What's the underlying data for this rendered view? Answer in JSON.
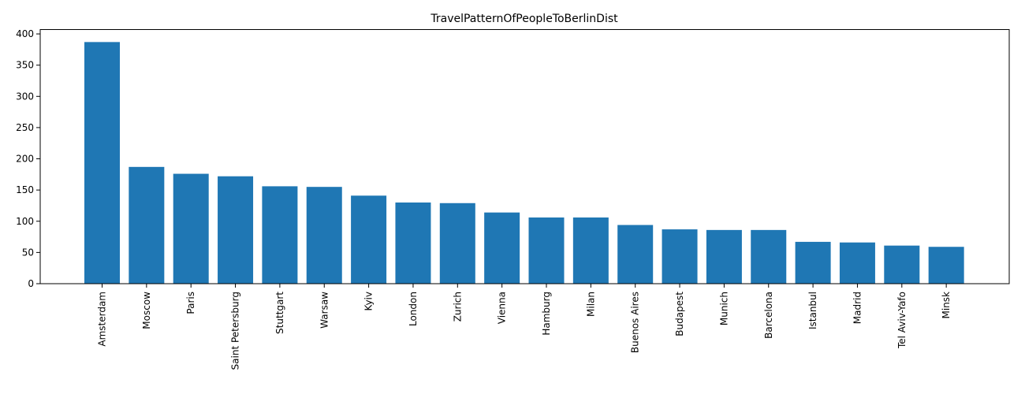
{
  "colors": {
    "bar": "#1f77b4",
    "axis": "#000000",
    "background": "#ffffff"
  },
  "chart_data": {
    "type": "bar",
    "title": "TravelPatternOfPeopleToBerlinDist",
    "xlabel": "",
    "ylabel": "",
    "ylim": [
      0,
      407
    ],
    "yticks": [
      0,
      50,
      100,
      150,
      200,
      250,
      300,
      350,
      400
    ],
    "grid": false,
    "categories": [
      "Amsterdam",
      "Moscow",
      "Paris",
      "Saint Petersburg",
      "Stuttgart",
      "Warsaw",
      "Kyiv",
      "London",
      "Zurich",
      "Vienna",
      "Hamburg",
      "Milan",
      "Buenos Aires",
      "Budapest",
      "Munich",
      "Barcelona",
      "Istanbul",
      "Madrid",
      "Tel Aviv-Yafo",
      "Minsk"
    ],
    "values": [
      387,
      187,
      176,
      172,
      156,
      155,
      141,
      130,
      129,
      114,
      106,
      106,
      94,
      87,
      86,
      86,
      67,
      66,
      61,
      59
    ]
  }
}
